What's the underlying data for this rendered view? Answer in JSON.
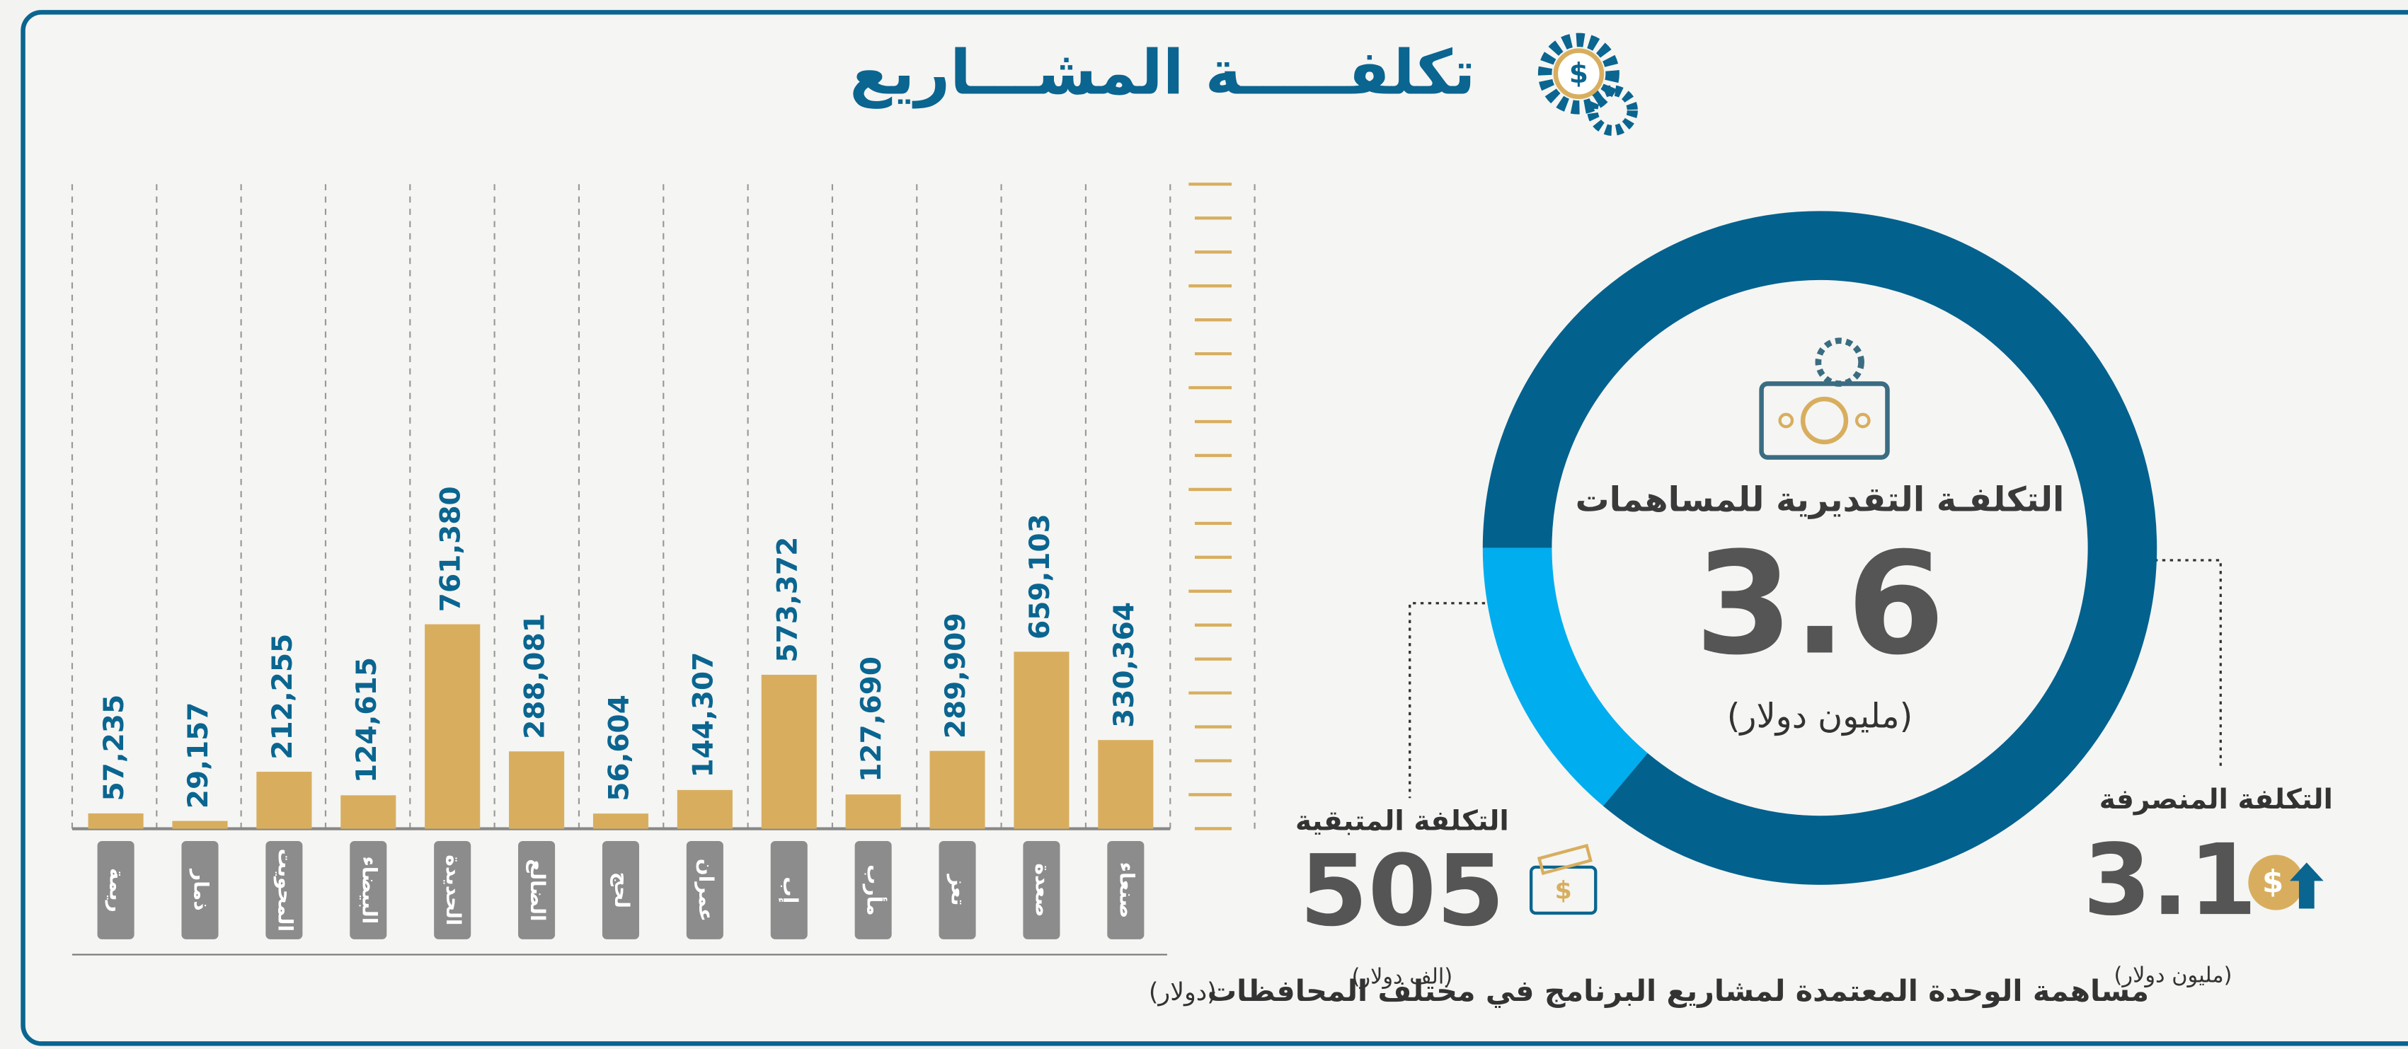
{
  "title": "تكلفـــــة المشـــاريع",
  "chart_data": {
    "type": "bar",
    "categories": [
      "صنعاء",
      "صعدة",
      "تعز",
      "مأرب",
      "إب",
      "عمران",
      "لحج",
      "الضالع",
      "الحديدة",
      "البيضاء",
      "المحويت",
      "ذمار",
      "ريمة"
    ],
    "values": [
      330364,
      659103,
      289909,
      127690,
      573372,
      144307,
      56604,
      288081,
      761380,
      124615,
      212255,
      29157,
      57235
    ],
    "value_labels": [
      "330,364",
      "659,103",
      "289,909",
      "127,690",
      "573,372",
      "144,307",
      "56,604",
      "288,081",
      "761,380",
      "124,615",
      "212,255",
      "29,157",
      "57,235"
    ],
    "color": "#d8ae5e",
    "ylim": [
      0,
      2400000
    ],
    "caption": "مساهمة الوحدة المعتمدة لمشاريع البرنامج في مختلف المحافظات",
    "caption_unit": "(دولار)"
  },
  "donut": {
    "title": "التكلفـة التقديرية للمساهمات",
    "total": {
      "value": 3.6,
      "unit": "(مليون دولار)"
    },
    "spent": {
      "label": "التكلفة المنصرفة",
      "value": 3.1,
      "unit": "(مليون دولار)",
      "color": "#03618e"
    },
    "remaining": {
      "label": "التكلفة المتبقية",
      "value": 505,
      "unit": "(الف دولار)",
      "color": "#00adef"
    }
  }
}
